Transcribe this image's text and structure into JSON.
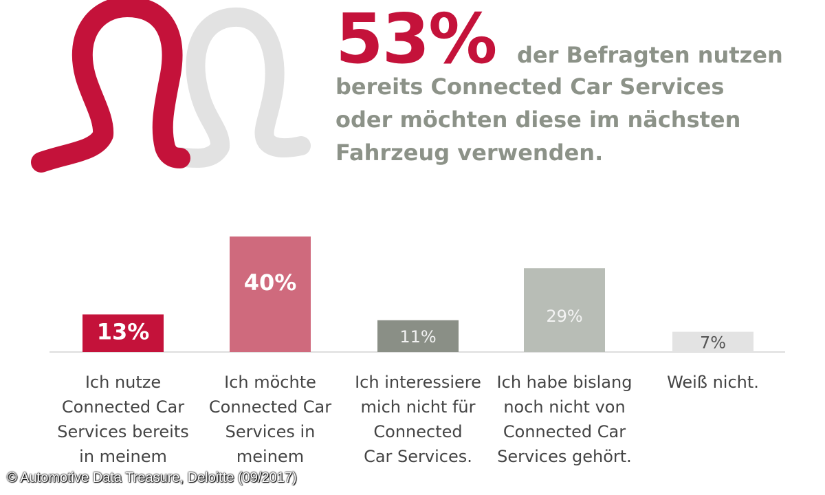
{
  "headline": {
    "percent": "53%",
    "line1": "der Befragten nutzen",
    "line2": "bereits Connected Car Services",
    "line3": "oder möchten diese im nächsten",
    "line4": "Fahrzeug verwenden."
  },
  "colors": {
    "primary_red": "#c4123a",
    "pink": "#cf6a7d",
    "dark_gray": "#8a8f86",
    "light_gray": "#b8bdb6",
    "pale_gray": "#e3e3e3"
  },
  "chart_data": {
    "type": "bar",
    "categories": [
      "Ich nutze Connected Car Services bereits in meinem",
      "Ich möchte Connected Car Services in meinem",
      "Ich interessiere mich nicht für Connected Car Services.",
      "Ich habe bislang noch nicht von Connected Car Services gehört.",
      "Weiß nicht."
    ],
    "values": [
      13,
      40,
      11,
      29,
      7
    ],
    "data_labels": [
      "13%",
      "40%",
      "11%",
      "29%",
      "7%"
    ],
    "ylim": [
      0,
      40
    ],
    "grid": false,
    "legend": "none"
  },
  "labels": [
    [
      "Ich nutze",
      "Connected Car",
      "Services bereits",
      "in meinem"
    ],
    [
      "Ich möchte",
      "Connected Car",
      "Services in",
      "meinem"
    ],
    [
      "Ich interessiere",
      "mich nicht für",
      "Connected",
      "Car Services."
    ],
    [
      "Ich habe bislang",
      "noch nicht von",
      "Connected Car",
      "Services gehört."
    ],
    [
      "Weiß nicht."
    ]
  ],
  "source": "© Automotive Data Treasure, Deloitte (09/2017)"
}
